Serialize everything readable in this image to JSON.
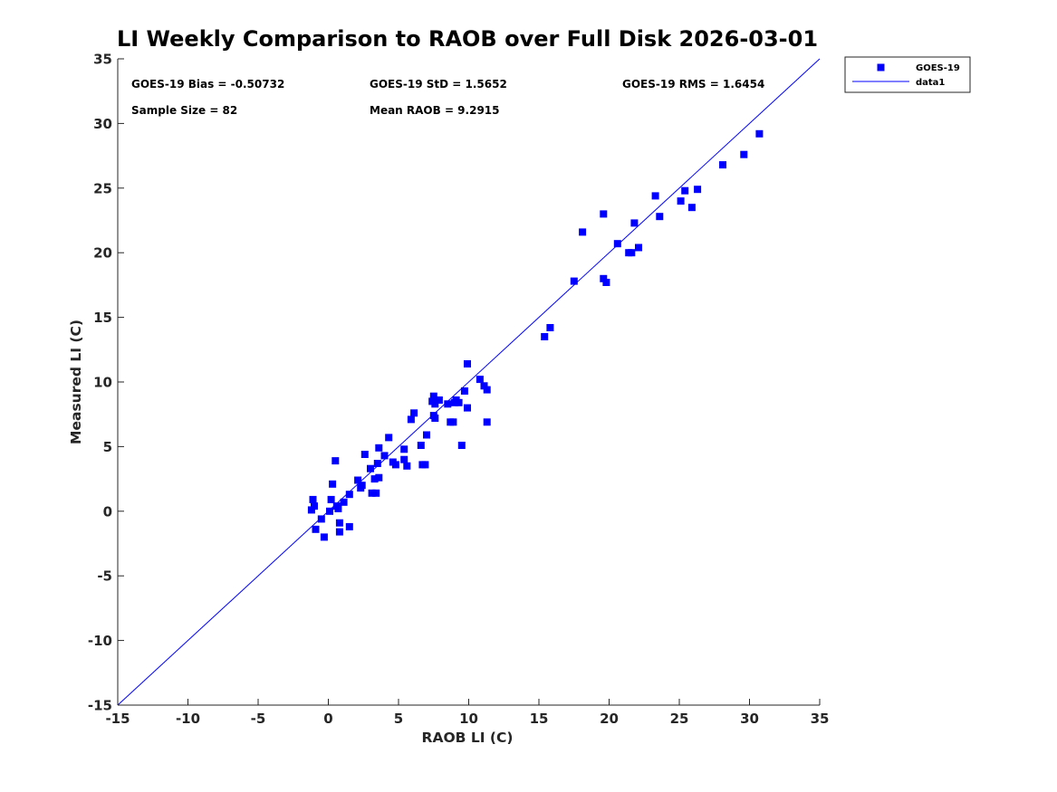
{
  "chart_data": {
    "type": "scatter",
    "title": "LI Weekly Comparison to RAOB over Full Disk 2026-03-01",
    "xlabel": "RAOB LI (C)",
    "ylabel": "Measured LI (C)",
    "xlim": [
      -15,
      35
    ],
    "ylim": [
      -15,
      35
    ],
    "xticks": [
      "-15",
      "-10",
      "-5",
      "0",
      "5",
      "10",
      "15",
      "20",
      "25",
      "30",
      "35"
    ],
    "yticks": [
      "-15",
      "-10",
      "-5",
      "0",
      "5",
      "10",
      "15",
      "20",
      "25",
      "30",
      "35"
    ],
    "legend_position": "outside-top-right",
    "annotations": [
      "GOES-19 Bias = -0.50732",
      "GOES-19 StD = 1.5652",
      "GOES-19 RMS = 1.6454",
      "Sample Size = 82",
      "Mean RAOB = 9.2915"
    ],
    "colors": {
      "series": "#0000ff",
      "axes": "#262626"
    },
    "series": [
      {
        "name": "GOES-19",
        "kind": "scatter",
        "marker": "square",
        "points": [
          [
            -1.1,
            0.9
          ],
          [
            -1.0,
            0.4
          ],
          [
            -1.2,
            0.1
          ],
          [
            -0.9,
            -1.4
          ],
          [
            -0.5,
            -0.6
          ],
          [
            -0.3,
            -2.0
          ],
          [
            0.1,
            0.0
          ],
          [
            0.2,
            0.9
          ],
          [
            0.3,
            2.1
          ],
          [
            0.5,
            3.9
          ],
          [
            0.6,
            0.4
          ],
          [
            0.7,
            0.2
          ],
          [
            0.8,
            -0.9
          ],
          [
            0.8,
            -1.6
          ],
          [
            1.1,
            0.7
          ],
          [
            1.5,
            1.3
          ],
          [
            1.5,
            -1.2
          ],
          [
            2.1,
            2.4
          ],
          [
            2.3,
            1.8
          ],
          [
            2.4,
            2.0
          ],
          [
            2.6,
            4.4
          ],
          [
            3.0,
            3.3
          ],
          [
            3.1,
            1.4
          ],
          [
            3.3,
            2.5
          ],
          [
            3.4,
            1.4
          ],
          [
            3.5,
            3.7
          ],
          [
            3.6,
            4.9
          ],
          [
            3.6,
            2.6
          ],
          [
            4.0,
            4.3
          ],
          [
            4.3,
            5.7
          ],
          [
            4.6,
            3.8
          ],
          [
            4.8,
            3.6
          ],
          [
            5.4,
            4.0
          ],
          [
            5.4,
            4.8
          ],
          [
            5.6,
            3.5
          ],
          [
            5.9,
            7.1
          ],
          [
            6.1,
            7.6
          ],
          [
            6.6,
            5.1
          ],
          [
            6.7,
            3.6
          ],
          [
            6.9,
            3.6
          ],
          [
            7.0,
            5.9
          ],
          [
            7.4,
            8.5
          ],
          [
            7.5,
            8.9
          ],
          [
            7.5,
            7.4
          ],
          [
            7.6,
            7.2
          ],
          [
            7.6,
            8.3
          ],
          [
            7.9,
            8.6
          ],
          [
            8.5,
            8.3
          ],
          [
            8.7,
            6.9
          ],
          [
            8.9,
            6.9
          ],
          [
            9.0,
            8.4
          ],
          [
            9.1,
            8.6
          ],
          [
            9.3,
            8.4
          ],
          [
            9.5,
            5.1
          ],
          [
            9.7,
            9.3
          ],
          [
            9.9,
            8.0
          ],
          [
            9.9,
            11.4
          ],
          [
            10.8,
            10.2
          ],
          [
            11.1,
            9.7
          ],
          [
            11.3,
            9.4
          ],
          [
            11.3,
            6.9
          ],
          [
            15.4,
            13.5
          ],
          [
            15.8,
            14.2
          ],
          [
            17.5,
            17.8
          ],
          [
            18.1,
            21.6
          ],
          [
            19.6,
            23.0
          ],
          [
            19.6,
            18.0
          ],
          [
            19.8,
            17.7
          ],
          [
            20.6,
            20.7
          ],
          [
            21.4,
            20.0
          ],
          [
            21.6,
            20.0
          ],
          [
            21.8,
            22.3
          ],
          [
            22.1,
            20.4
          ],
          [
            23.3,
            24.4
          ],
          [
            23.6,
            22.8
          ],
          [
            25.1,
            24.0
          ],
          [
            25.4,
            24.8
          ],
          [
            25.9,
            23.5
          ],
          [
            26.3,
            24.9
          ],
          [
            28.1,
            26.8
          ],
          [
            29.6,
            27.6
          ],
          [
            30.7,
            29.2
          ]
        ]
      },
      {
        "name": "data1",
        "kind": "line",
        "points": [
          [
            -15,
            -15
          ],
          [
            35,
            35
          ]
        ]
      }
    ]
  }
}
